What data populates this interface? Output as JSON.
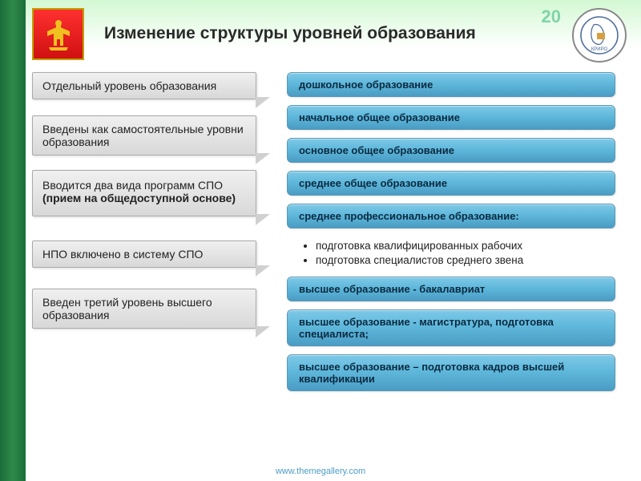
{
  "slideNumber": "20",
  "title": "Изменение структуры уровней образования",
  "logoRightLabel": "КРИРО",
  "leftBoxes": [
    {
      "text": "Отдельный уровень образования"
    },
    {
      "text": "Введены как самостоятельные уровни образования"
    },
    {
      "html": "Вводится два вида программ СПО<br><b>(прием на общедоступной основе)</b>"
    },
    {
      "text": "НПО включено в систему СПО"
    },
    {
      "text": "Введен третий уровень высшего образования"
    }
  ],
  "rightBoxes": [
    {
      "text": "дошкольное образование"
    },
    {
      "text": "начальное общее образование"
    },
    {
      "text": "основное общее образование"
    },
    {
      "text": "среднее общее образование"
    },
    {
      "text": "среднее профессиональное образование:"
    },
    {
      "text": "высшее образование - бакалавриат"
    },
    {
      "text": "высшее образование - магистратура, подготовка специалиста;"
    },
    {
      "text": "высшее образование – подготовка кадров высшей квалификации"
    }
  ],
  "subList": [
    "подготовка квалифицированных рабочих",
    "подготовка специалистов среднего звена"
  ],
  "footerLink": "www.themegallery.com",
  "colors": {
    "ribbon": "#1a6e3a",
    "leftBoxBg": "#e4e4e4",
    "rightBoxBg": "#5fb8db",
    "logoLeftBg": "#e02020"
  }
}
